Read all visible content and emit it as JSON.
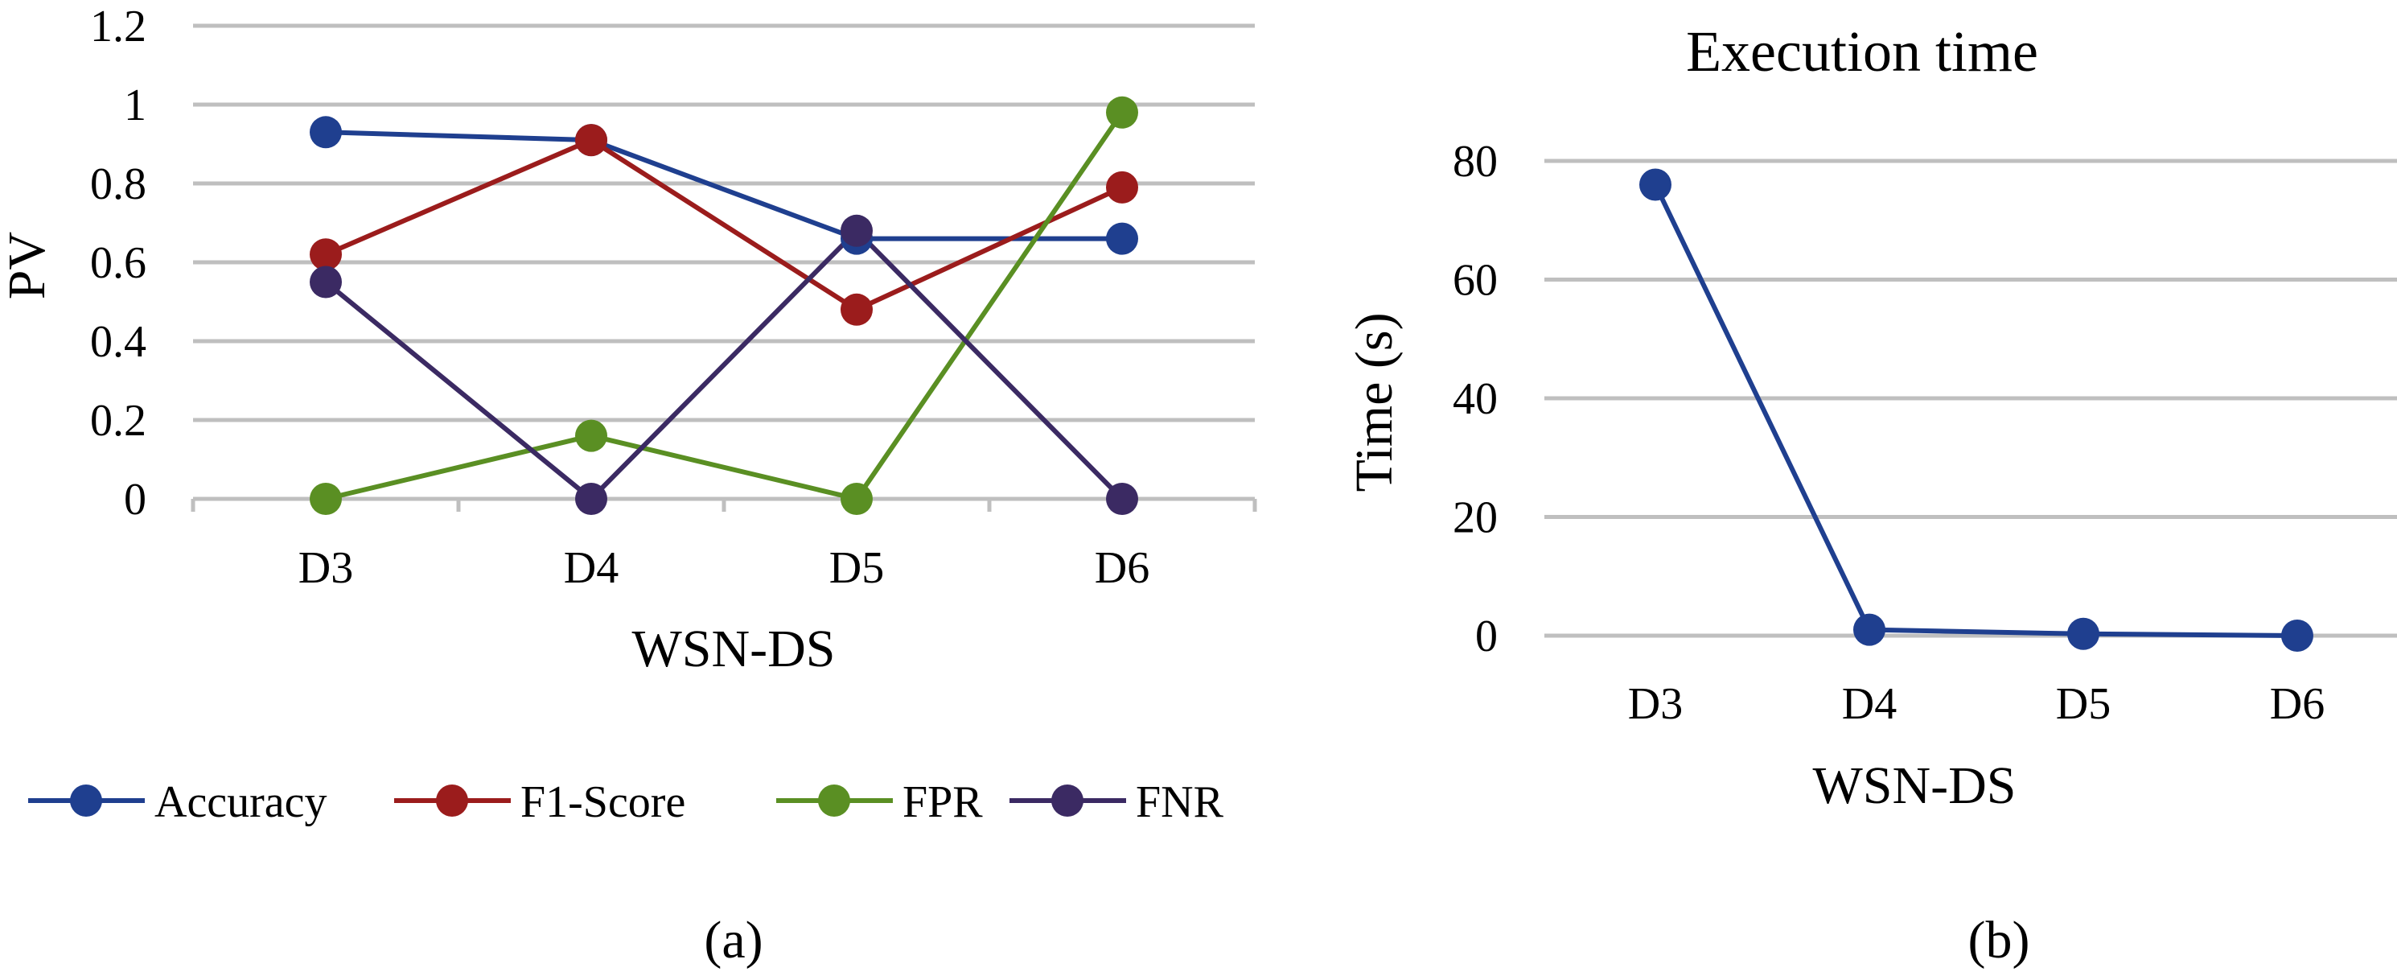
{
  "chart_data": [
    {
      "type": "line",
      "panel_label": "(a)",
      "title": "",
      "xlabel": "WSN-DS",
      "ylabel": "PV",
      "categories": [
        "D3",
        "D4",
        "D5",
        "D6"
      ],
      "ylim": [
        0,
        1.2
      ],
      "yticks": [
        "0",
        "0.2",
        "0.4",
        "0.6",
        "0.8",
        "1",
        "1.2"
      ],
      "grid": true,
      "legend_position": "bottom",
      "series": [
        {
          "name": "Accuracy",
          "color": "#1f3f8f",
          "values": [
            0.93,
            0.91,
            0.66,
            0.66
          ]
        },
        {
          "name": "F1-Score",
          "color": "#9b1c1c",
          "values": [
            0.62,
            0.91,
            0.48,
            0.79
          ]
        },
        {
          "name": "FPR",
          "color": "#5a8f23",
          "values": [
            0.0,
            0.16,
            0.0,
            0.98
          ]
        },
        {
          "name": "FNR",
          "color": "#3b2a63",
          "values": [
            0.55,
            0.0,
            0.68,
            0.0
          ]
        }
      ]
    },
    {
      "type": "line",
      "panel_label": "(b)",
      "title": "Execution time",
      "xlabel": "WSN-DS",
      "ylabel": "Time (s)",
      "categories": [
        "D3",
        "D4",
        "D5",
        "D6"
      ],
      "ylim": [
        -10,
        90
      ],
      "yticks": [
        "0",
        "20",
        "40",
        "60",
        "80"
      ],
      "grid": true,
      "legend_position": "none",
      "series": [
        {
          "name": "Time",
          "color": "#1f3f8f",
          "values": [
            76,
            1,
            0.3,
            0
          ]
        }
      ]
    }
  ]
}
